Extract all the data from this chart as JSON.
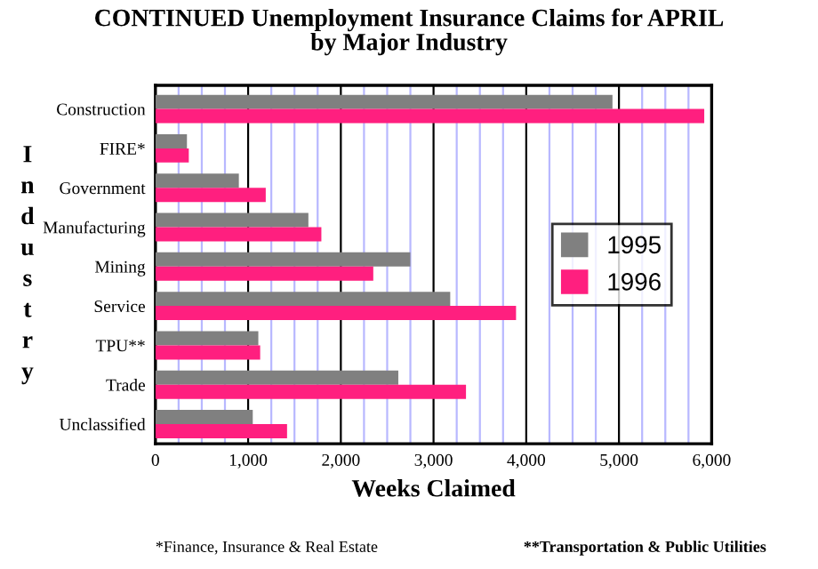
{
  "chart_data": {
    "type": "bar",
    "orientation": "horizontal",
    "title": "CONTINUED Unemployment Insurance Claims for APRIL\nby Major Industry",
    "xlabel": "Weeks Claimed",
    "ylabel": "Industry",
    "categories": [
      "Construction",
      "FIRE*",
      "Government",
      "Manufacturing",
      "Mining",
      "Service",
      "TPU**",
      "Trade",
      "Unclassified"
    ],
    "series": [
      {
        "name": "1995",
        "color": "#808080",
        "values": [
          4930,
          340,
          900,
          1650,
          2750,
          3180,
          1110,
          2620,
          1050
        ]
      },
      {
        "name": "1996",
        "color": "#ff1f7f",
        "values": [
          5920,
          360,
          1190,
          1790,
          2350,
          3890,
          1130,
          3350,
          1420
        ]
      }
    ],
    "xlim": [
      0,
      6000
    ],
    "xticks": [
      {
        "value": 0,
        "label": "0"
      },
      {
        "value": 250,
        "label": null
      },
      {
        "value": 500,
        "label": null
      },
      {
        "value": 750,
        "label": null
      },
      {
        "value": 1000,
        "label": "1,000"
      },
      {
        "value": 1250,
        "label": null
      },
      {
        "value": 1500,
        "label": null
      },
      {
        "value": 1750,
        "label": null
      },
      {
        "value": 2000,
        "label": "2,000"
      },
      {
        "value": 2250,
        "label": null
      },
      {
        "value": 2500,
        "label": null
      },
      {
        "value": 2750,
        "label": null
      },
      {
        "value": 3000,
        "label": "3,000"
      },
      {
        "value": 3250,
        "label": null
      },
      {
        "value": 3500,
        "label": null
      },
      {
        "value": 3750,
        "label": null
      },
      {
        "value": 4000,
        "label": "4,000"
      },
      {
        "value": 4250,
        "label": null
      },
      {
        "value": 4500,
        "label": null
      },
      {
        "value": 4750,
        "label": null
      },
      {
        "value": 5000,
        "label": "5,000"
      },
      {
        "value": 5250,
        "label": null
      },
      {
        "value": 5500,
        "label": null
      },
      {
        "value": 5750,
        "label": null
      },
      {
        "value": 6000,
        "label": "6,000"
      }
    ],
    "grid": "x",
    "legend": "right",
    "annotations": [
      "*Finance, Insurance & Real Estate",
      "**Transportation & Public Utilities"
    ]
  }
}
